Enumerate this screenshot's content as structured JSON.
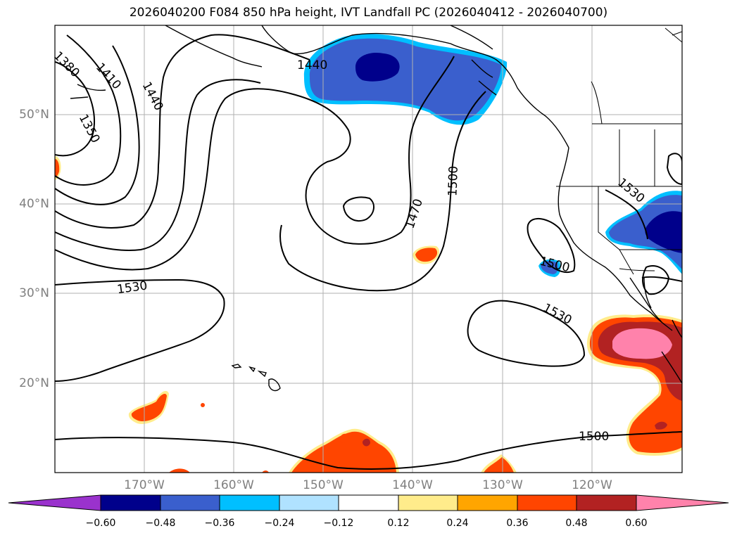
{
  "title": "2026040200 F084 850 hPa height, IVT Landfall PC (2026040412 - 2026040700)",
  "lat_labels": [
    "50°N",
    "40°N",
    "30°N",
    "20°N"
  ],
  "lon_labels": [
    "170°W",
    "160°W",
    "150°W",
    "140°W",
    "130°W",
    "120°W"
  ],
  "contour_labels": [
    "1380",
    "1410",
    "1440",
    "1350",
    "1440",
    "1470",
    "1500",
    "1530",
    "1530",
    "1500",
    "1530",
    "1500"
  ],
  "colorbar": {
    "ticks": [
      "−0.60",
      "−0.48",
      "−0.36",
      "−0.24",
      "−0.12",
      "0.12",
      "0.24",
      "0.36",
      "0.48",
      "0.60"
    ],
    "colors": [
      "#9a32cd",
      "#00008b",
      "#3a5fcd",
      "#00bfff",
      "#b0e2ff",
      "#ffffff",
      "#ffec8b",
      "#ffa500",
      "#ff4500",
      "#b22222",
      "#ff82ab"
    ]
  }
}
